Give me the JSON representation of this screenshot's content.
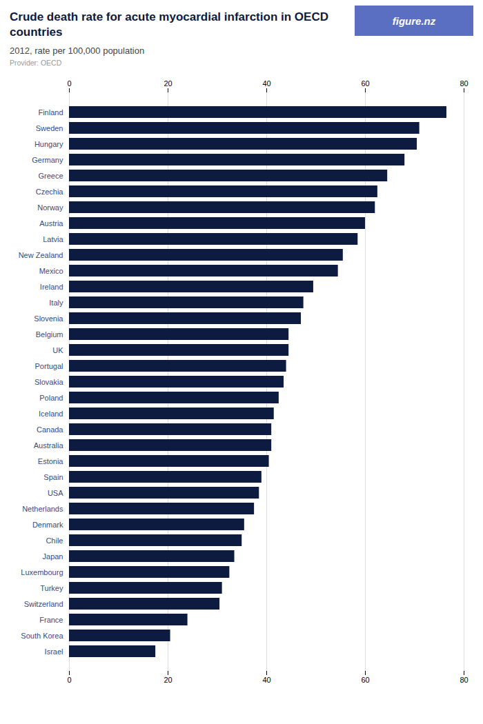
{
  "chart_data": {
    "type": "bar",
    "orientation": "horizontal",
    "title": "Crude death rate for acute myocardial infarction in OECD countries",
    "subtitle": "2012, rate per 100,000 population",
    "annotations": [
      "Provider: OECD",
      "figure.nz"
    ],
    "categories": [
      "Finland",
      "Sweden",
      "Hungary",
      "Germany",
      "Greece",
      "Czechia",
      "Norway",
      "Austria",
      "Latvia",
      "New Zealand",
      "Mexico",
      "Ireland",
      "Italy",
      "Slovenia",
      "Belgium",
      "UK",
      "Portugal",
      "Slovakia",
      "Poland",
      "Iceland",
      "Canada",
      "Australia",
      "Estonia",
      "Spain",
      "USA",
      "Netherlands",
      "Denmark",
      "Chile",
      "Japan",
      "Luxembourg",
      "Turkey",
      "Switzerland",
      "France",
      "South Korea",
      "Israel"
    ],
    "values": [
      76.5,
      71.0,
      70.5,
      68.0,
      64.5,
      62.5,
      62.0,
      60.0,
      58.5,
      55.5,
      54.5,
      49.5,
      47.5,
      47.0,
      44.5,
      44.5,
      44.0,
      43.5,
      42.5,
      41.5,
      41.0,
      41.0,
      40.5,
      39.0,
      38.5,
      37.5,
      35.5,
      35.0,
      33.5,
      32.5,
      31.0,
      30.5,
      24.0,
      20.5,
      17.5
    ],
    "color": "#0d1b40",
    "xlim": [
      0,
      80
    ],
    "xticks": [
      0,
      20,
      40,
      60,
      80
    ],
    "grid": true
  }
}
